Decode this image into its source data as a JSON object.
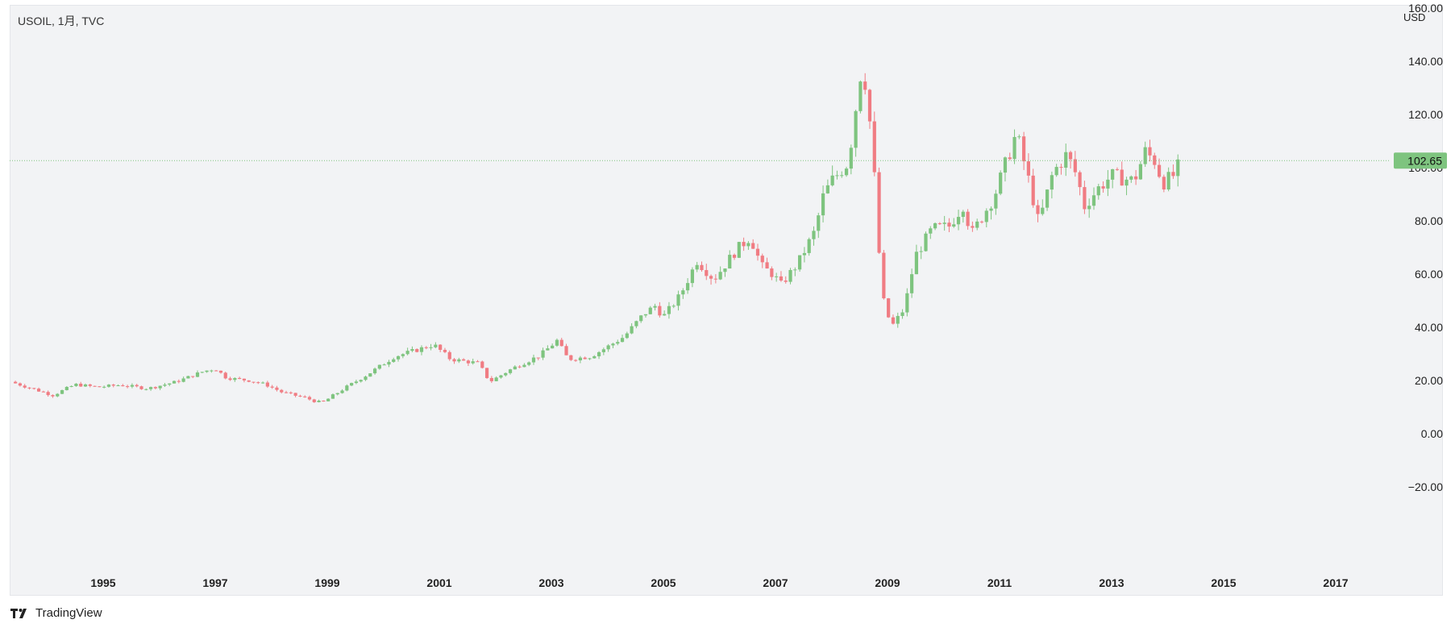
{
  "header": {
    "symbol_title": "USOIL, 1月, TVC"
  },
  "axis": {
    "currency": "USD",
    "last_price_label": "102.65"
  },
  "footer": {
    "brand": "TradingView"
  },
  "colors": {
    "up": "#7ec47f",
    "down": "#f07c83",
    "last_price_bg": "#7ec47f",
    "price_line": "#7ec47f"
  },
  "chart_data": {
    "type": "candlestick",
    "ylim": [
      -40,
      160
    ],
    "yticks": [
      -20,
      0,
      20,
      40,
      60,
      80,
      100,
      120,
      140,
      160
    ],
    "ytick_labels": [
      "−20.00",
      "0.00",
      "20.00",
      "40.00",
      "60.00",
      "80.00",
      "100.00",
      "120.00",
      "140.00",
      "160.00"
    ],
    "xlim": [
      1993.35,
      2019.2
    ],
    "xticks": [
      1995,
      1997,
      1999,
      2001,
      2003,
      2005,
      2007,
      2009,
      2011,
      2013,
      2015,
      2017
    ],
    "xtick_labels": [
      "1995",
      "1997",
      "1999",
      "2001",
      "2003",
      "2005",
      "2007",
      "2009",
      "2011",
      "2013",
      "2015",
      "2017"
    ],
    "last_price": 102.65,
    "close_path": [
      [
        1993.35,
        19.5
      ],
      [
        1993.8,
        16.5
      ],
      [
        1994.1,
        14.5
      ],
      [
        1994.5,
        18.5
      ],
      [
        1994.9,
        17.5
      ],
      [
        1995.3,
        18.3
      ],
      [
        1995.8,
        17.0
      ],
      [
        1996.3,
        19.5
      ],
      [
        1996.8,
        23.5
      ],
      [
        1997.0,
        24.5
      ],
      [
        1997.2,
        21.0
      ],
      [
        1997.6,
        20.0
      ],
      [
        1997.9,
        18.5
      ],
      [
        1998.2,
        15.5
      ],
      [
        1998.6,
        13.5
      ],
      [
        1998.9,
        11.5
      ],
      [
        1999.3,
        17.0
      ],
      [
        1999.7,
        22.0
      ],
      [
        2000.2,
        29.0
      ],
      [
        2000.6,
        31.5
      ],
      [
        2000.9,
        33.5
      ],
      [
        2001.2,
        28.0
      ],
      [
        2001.7,
        26.5
      ],
      [
        2001.9,
        19.5
      ],
      [
        2002.3,
        24.5
      ],
      [
        2002.8,
        29.5
      ],
      [
        2003.1,
        35.0
      ],
      [
        2003.3,
        28.0
      ],
      [
        2003.7,
        29.0
      ],
      [
        2003.95,
        32.0
      ],
      [
        2004.3,
        36.5
      ],
      [
        2004.65,
        45.0
      ],
      [
        2004.85,
        48.0
      ],
      [
        2005.0,
        44.0
      ],
      [
        2005.3,
        52.0
      ],
      [
        2005.6,
        65.0
      ],
      [
        2005.9,
        58.0
      ],
      [
        2006.3,
        69.0
      ],
      [
        2006.55,
        74.0
      ],
      [
        2006.75,
        63.0
      ],
      [
        2006.95,
        60.0
      ],
      [
        2007.1,
        56.0
      ],
      [
        2007.4,
        64.0
      ],
      [
        2007.7,
        76.0
      ],
      [
        2007.85,
        89.0
      ],
      [
        2008.0,
        95.0
      ],
      [
        2008.3,
        102.0
      ],
      [
        2008.45,
        125.0
      ],
      [
        2008.55,
        140.0
      ],
      [
        2008.65,
        125.0
      ],
      [
        2008.75,
        102.0
      ],
      [
        2008.85,
        68.0
      ],
      [
        2008.95,
        46.0
      ],
      [
        2009.1,
        41.0
      ],
      [
        2009.3,
        47.0
      ],
      [
        2009.5,
        67.0
      ],
      [
        2009.8,
        77.0
      ],
      [
        2010.1,
        78.0
      ],
      [
        2010.35,
        86.0
      ],
      [
        2010.5,
        75.0
      ],
      [
        2010.9,
        89.0
      ],
      [
        2011.15,
        104.0
      ],
      [
        2011.3,
        113.0
      ],
      [
        2011.5,
        97.0
      ],
      [
        2011.7,
        79.0
      ],
      [
        2011.95,
        98.0
      ],
      [
        2012.2,
        105.0
      ],
      [
        2012.4,
        96.0
      ],
      [
        2012.5,
        85.0
      ],
      [
        2012.75,
        92.0
      ],
      [
        2013.0,
        97.0
      ],
      [
        2013.4,
        95.0
      ],
      [
        2013.6,
        106.0
      ],
      [
        2013.8,
        102.0
      ],
      [
        2013.9,
        94.0
      ],
      [
        2014.1,
        97.0
      ],
      [
        2014.25,
        102.65
      ]
    ]
  }
}
